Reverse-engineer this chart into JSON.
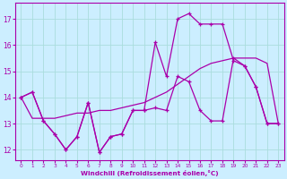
{
  "background_color": "#cceeff",
  "grid_color": "#aadddd",
  "line_color": "#aa00aa",
  "xlabel": "Windchill (Refroidissement éolien,°C)",
  "xlim": [
    -0.5,
    23.5
  ],
  "ylim": [
    11.6,
    17.6
  ],
  "yticks": [
    12,
    13,
    14,
    15,
    16,
    17
  ],
  "xticks": [
    0,
    1,
    2,
    3,
    4,
    5,
    6,
    7,
    8,
    9,
    10,
    11,
    12,
    13,
    14,
    15,
    16,
    17,
    18,
    19,
    20,
    21,
    22,
    23
  ],
  "line1_x": [
    0,
    1,
    2,
    3,
    4,
    5,
    6,
    7,
    8,
    9,
    10,
    11,
    12,
    13,
    14,
    15,
    16,
    17,
    18,
    19,
    20,
    21,
    22,
    23
  ],
  "line1_y": [
    14.0,
    14.2,
    13.1,
    12.6,
    12.0,
    12.5,
    13.8,
    11.9,
    12.5,
    12.6,
    13.5,
    13.5,
    16.1,
    14.8,
    17.0,
    17.2,
    16.8,
    16.8,
    16.8,
    15.4,
    15.2,
    14.4,
    13.0,
    13.0
  ],
  "line2_x": [
    0,
    1,
    2,
    3,
    4,
    5,
    6,
    7,
    8,
    9,
    10,
    11,
    12,
    13,
    14,
    15,
    16,
    17,
    18,
    19,
    20,
    21,
    22,
    23
  ],
  "line2_y": [
    14.0,
    13.2,
    13.2,
    13.2,
    13.3,
    13.4,
    13.4,
    13.5,
    13.5,
    13.6,
    13.7,
    13.8,
    14.0,
    14.2,
    14.5,
    14.8,
    15.1,
    15.3,
    15.4,
    15.5,
    15.5,
    15.5,
    15.3,
    13.0
  ],
  "line3_x": [
    0,
    1,
    2,
    3,
    4,
    5,
    6,
    7,
    8,
    9,
    10,
    11,
    12,
    13,
    14,
    15,
    16,
    17,
    18,
    19,
    20,
    21,
    22,
    23
  ],
  "line3_y": [
    14.0,
    14.2,
    13.1,
    12.6,
    12.0,
    12.5,
    13.8,
    11.9,
    12.5,
    12.6,
    13.5,
    13.5,
    13.6,
    13.5,
    14.8,
    14.6,
    13.5,
    13.1,
    13.1,
    15.5,
    15.2,
    14.4,
    13.0,
    13.0
  ]
}
